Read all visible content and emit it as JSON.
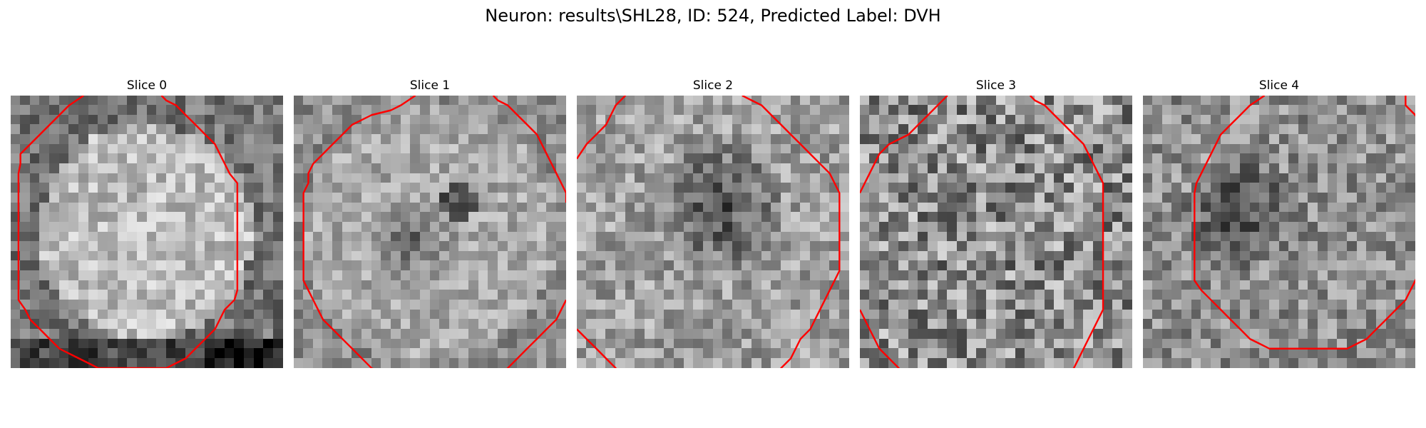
{
  "figure": {
    "title": "Neuron: results\\SHL28, ID: 524, Predicted Label: DVH"
  },
  "colors": {
    "background": "#ffffff",
    "contour": "#ff0000",
    "colormap": "gray"
  },
  "image_grid": {
    "rows": 28,
    "cols": 28
  },
  "panels": [
    {
      "title": "Slice 0",
      "pattern": "bright-disk",
      "contour_segments": [
        [
          [
            7.5,
            0
          ],
          [
            6,
            1
          ],
          [
            5,
            2
          ],
          [
            3,
            4
          ],
          [
            1,
            6
          ],
          [
            1,
            7
          ],
          [
            0.8,
            8
          ],
          [
            0.8,
            21
          ],
          [
            1.5,
            22
          ],
          [
            2,
            23
          ],
          [
            3,
            24
          ],
          [
            4,
            25
          ],
          [
            5,
            26
          ],
          [
            7,
            27
          ],
          [
            8,
            27.5
          ],
          [
            9,
            28
          ],
          [
            16,
            28
          ],
          [
            17,
            27.5
          ],
          [
            18,
            27
          ],
          [
            19,
            26
          ],
          [
            20,
            25
          ],
          [
            21,
            24
          ],
          [
            21.5,
            23
          ],
          [
            22,
            22
          ],
          [
            23,
            21
          ],
          [
            23.3,
            20
          ],
          [
            23.3,
            9
          ],
          [
            22.5,
            8
          ],
          [
            22,
            7
          ],
          [
            21.5,
            6
          ],
          [
            21,
            5
          ],
          [
            20,
            4
          ],
          [
            19,
            3
          ],
          [
            18,
            2
          ],
          [
            17,
            1
          ],
          [
            16,
            0.5
          ],
          [
            15.5,
            0
          ]
        ]
      ]
    },
    {
      "title": "Slice 1",
      "pattern": "ring-dark-center",
      "contour_segments": [
        [
          [
            12.5,
            0
          ],
          [
            11,
            1
          ],
          [
            10,
            1.5
          ],
          [
            8,
            2
          ],
          [
            6,
            3
          ],
          [
            5,
            4
          ],
          [
            4,
            5
          ],
          [
            3,
            6
          ],
          [
            2,
            7
          ],
          [
            1.5,
            8
          ],
          [
            1.5,
            9
          ],
          [
            1,
            10
          ],
          [
            1,
            19
          ],
          [
            1.5,
            20
          ],
          [
            2,
            21
          ],
          [
            2.5,
            22
          ],
          [
            3,
            23
          ],
          [
            4,
            24
          ],
          [
            5,
            25
          ],
          [
            6,
            26
          ],
          [
            7,
            27
          ],
          [
            8,
            28
          ],
          [
            10,
            29
          ],
          [
            12,
            30
          ],
          [
            13,
            31
          ],
          [
            18,
            31
          ],
          [
            19,
            30
          ],
          [
            21,
            29
          ],
          [
            22,
            28
          ],
          [
            23,
            27
          ],
          [
            24,
            26
          ],
          [
            25,
            25
          ],
          [
            26,
            24
          ],
          [
            27,
            23
          ],
          [
            27.5,
            22
          ],
          [
            28,
            21
          ]
        ],
        [
          [
            20.5,
            0
          ],
          [
            21,
            0.5
          ],
          [
            22,
            1
          ],
          [
            23,
            2
          ],
          [
            24,
            3
          ],
          [
            25,
            4
          ],
          [
            25.5,
            5
          ],
          [
            26,
            6
          ],
          [
            26.5,
            7
          ],
          [
            27,
            8
          ],
          [
            27.5,
            9
          ],
          [
            28,
            10
          ],
          [
            28,
            11
          ]
        ]
      ]
    },
    {
      "title": "Slice 2",
      "pattern": "dark-center",
      "contour_segments": [
        [
          [
            5,
            0
          ],
          [
            4,
            1
          ],
          [
            3.5,
            2
          ],
          [
            3,
            3
          ],
          [
            2,
            4
          ],
          [
            1,
            5
          ],
          [
            0,
            6.5
          ]
        ],
        [
          [
            17,
            0
          ],
          [
            18,
            0.5
          ],
          [
            19,
            1
          ],
          [
            20,
            2
          ],
          [
            21,
            3
          ],
          [
            22,
            4
          ],
          [
            23,
            5
          ],
          [
            24,
            6
          ],
          [
            25,
            7
          ],
          [
            26,
            8
          ],
          [
            26.5,
            9
          ],
          [
            27,
            10
          ],
          [
            27,
            18
          ],
          [
            26.5,
            19
          ],
          [
            26,
            20
          ],
          [
            25.5,
            21
          ],
          [
            25,
            22
          ],
          [
            24.5,
            23
          ],
          [
            24,
            24
          ],
          [
            23,
            25
          ],
          [
            22.5,
            26
          ],
          [
            22,
            27
          ],
          [
            21,
            28
          ],
          [
            20,
            29
          ],
          [
            19,
            30
          ],
          [
            18,
            31
          ]
        ],
        [
          [
            0,
            24
          ],
          [
            1,
            25
          ],
          [
            2,
            26
          ],
          [
            3,
            27
          ],
          [
            4,
            28
          ],
          [
            5,
            29
          ],
          [
            6,
            30
          ],
          [
            6.5,
            31
          ]
        ]
      ]
    },
    {
      "title": "Slice 3",
      "pattern": "speckled",
      "contour_segments": [
        [
          [
            9,
            0
          ],
          [
            8,
            1
          ],
          [
            7,
            2
          ],
          [
            6,
            3
          ],
          [
            5,
            4
          ],
          [
            4,
            4.5
          ],
          [
            3,
            5
          ],
          [
            2,
            6
          ],
          [
            1.5,
            7
          ],
          [
            1,
            8
          ],
          [
            0.5,
            9
          ],
          [
            0,
            10
          ]
        ],
        [
          [
            17.5,
            0
          ],
          [
            18,
            0.5
          ],
          [
            19,
            1
          ],
          [
            20,
            2
          ],
          [
            21,
            3
          ],
          [
            22,
            4
          ],
          [
            23,
            5
          ],
          [
            23.5,
            6
          ],
          [
            24,
            7
          ],
          [
            24.5,
            8
          ],
          [
            25,
            9
          ],
          [
            25,
            22
          ],
          [
            24.5,
            23
          ],
          [
            24,
            24
          ],
          [
            23.5,
            25
          ],
          [
            23,
            26
          ],
          [
            22.5,
            27
          ],
          [
            22,
            28
          ],
          [
            21,
            29
          ],
          [
            20,
            30
          ],
          [
            19,
            31
          ]
        ],
        [
          [
            0,
            22
          ],
          [
            0.5,
            23
          ],
          [
            1,
            24
          ],
          [
            1.5,
            25
          ],
          [
            2,
            26
          ],
          [
            3,
            27
          ],
          [
            4,
            28
          ],
          [
            5,
            29
          ],
          [
            6,
            30
          ],
          [
            6.5,
            31
          ]
        ]
      ]
    },
    {
      "title": "Slice 4",
      "pattern": "offset-dark",
      "contour_segments": [
        [
          [
            12.5,
            0
          ],
          [
            11,
            1
          ],
          [
            10,
            2
          ],
          [
            9,
            3
          ],
          [
            8,
            4
          ],
          [
            7.5,
            5
          ],
          [
            7,
            6
          ],
          [
            6.5,
            7
          ],
          [
            6,
            8
          ],
          [
            5.5,
            9
          ],
          [
            5.3,
            10
          ],
          [
            5.3,
            19
          ],
          [
            6,
            20
          ],
          [
            7,
            21
          ],
          [
            8,
            22
          ],
          [
            9,
            23
          ],
          [
            10,
            24
          ],
          [
            11,
            25
          ],
          [
            12,
            25.5
          ],
          [
            13,
            26
          ],
          [
            21,
            26
          ],
          [
            22,
            25.5
          ],
          [
            23,
            25
          ],
          [
            24,
            24
          ],
          [
            25,
            23
          ],
          [
            26,
            22
          ],
          [
            27,
            21
          ],
          [
            27.5,
            20
          ],
          [
            28,
            19
          ],
          [
            28.5,
            18
          ]
        ],
        [
          [
            27,
            0
          ],
          [
            27,
            1
          ],
          [
            28,
            2
          ],
          [
            28.5,
            3
          ]
        ]
      ]
    }
  ]
}
